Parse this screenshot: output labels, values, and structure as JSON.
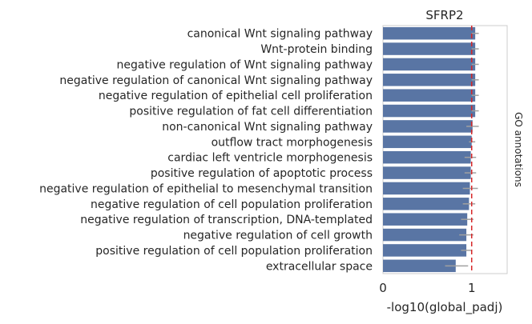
{
  "chart_data": {
    "type": "bar",
    "orientation": "horizontal",
    "title": "SFRP2",
    "xlabel": "-log10(global_padj)",
    "side_label": "GO annotations",
    "xlim": [
      0,
      1.4
    ],
    "xticks": [
      0,
      1
    ],
    "grid": false,
    "bar_color": "#5975a4",
    "errorbar_color": "#a0a0a0",
    "reference_line": {
      "x": 1.0,
      "color": "#d62728",
      "style": "dashed"
    },
    "categories": [
      "canonical Wnt signaling pathway",
      "Wnt-protein binding",
      "negative regulation of Wnt signaling pathway",
      "negative regulation of canonical Wnt signaling pathway",
      "negative regulation of epithelial cell proliferation",
      "positive regulation of fat cell differentiation",
      "non-canonical Wnt signaling pathway",
      "outflow tract morphogenesis",
      "cardiac left ventricle morphogenesis",
      "positive regulation of apoptotic process",
      "negative regulation of epithelial to mesenchymal transition",
      "negative regulation of cell population proliferation",
      "negative regulation of transcription, DNA-templated",
      "negative regulation of cell growth",
      "positive regulation of cell population proliferation",
      "extracellular space"
    ],
    "values": [
      1.04,
      1.04,
      1.04,
      1.04,
      1.04,
      1.04,
      1.01,
      1.0,
      0.99,
      0.99,
      0.98,
      0.97,
      0.95,
      0.94,
      0.94,
      0.82
    ],
    "error_low": [
      1.0,
      1.0,
      1.0,
      1.0,
      1.0,
      1.0,
      0.94,
      0.97,
      0.92,
      0.92,
      0.9,
      0.9,
      0.88,
      0.86,
      0.88,
      0.7
    ],
    "error_high": [
      1.08,
      1.08,
      1.08,
      1.08,
      1.08,
      1.08,
      1.08,
      1.04,
      1.05,
      1.05,
      1.07,
      1.04,
      1.02,
      1.02,
      1.0,
      0.96
    ]
  }
}
